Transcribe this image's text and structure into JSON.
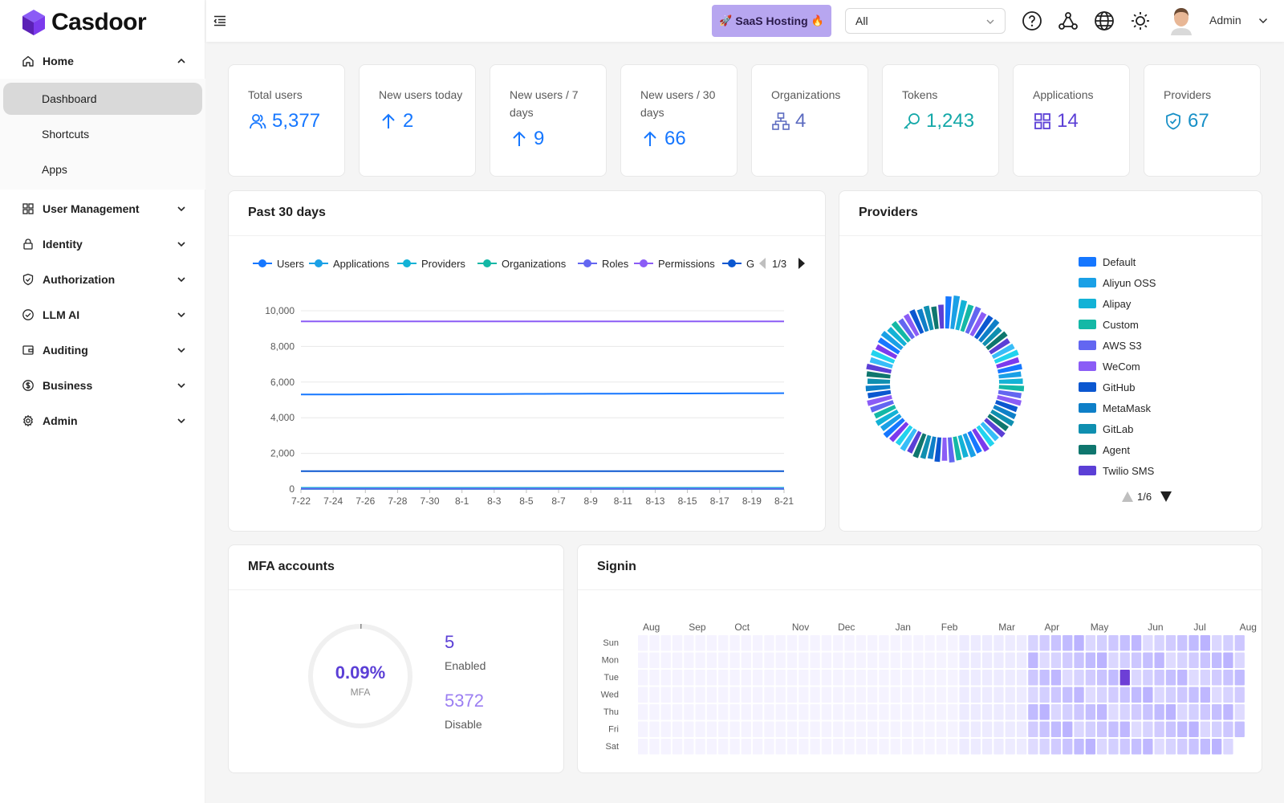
{
  "brand": {
    "name": "Casdoor"
  },
  "sidebar": {
    "items": [
      {
        "label": "Home",
        "icon": "home-icon",
        "expanded": true
      },
      {
        "label": "User Management",
        "icon": "apps-icon"
      },
      {
        "label": "Identity",
        "icon": "lock-icon"
      },
      {
        "label": "Authorization",
        "icon": "shield-icon"
      },
      {
        "label": "LLM AI",
        "icon": "check-circle-icon"
      },
      {
        "label": "Auditing",
        "icon": "wallet-icon"
      },
      {
        "label": "Business",
        "icon": "dollar-icon"
      },
      {
        "label": "Admin",
        "icon": "gear-icon"
      }
    ],
    "home_children": [
      {
        "label": "Dashboard",
        "active": true
      },
      {
        "label": "Shortcuts"
      },
      {
        "label": "Apps"
      }
    ]
  },
  "header": {
    "saas_button": "SaaS Hosting",
    "org_select": {
      "value": "All"
    },
    "user_name": "Admin",
    "icons": [
      "help-icon",
      "webhook-icon",
      "globe-icon",
      "sun-icon"
    ]
  },
  "stats": [
    {
      "title": "Total users",
      "value": "5,377",
      "icon": "users-icon",
      "color": "#1677ff"
    },
    {
      "title": "New users today",
      "value": "2",
      "icon": "arrow-up-icon",
      "color": "#1677ff"
    },
    {
      "title": "New users / 7 days",
      "value": "9",
      "icon": "arrow-up-icon",
      "color": "#1677ff"
    },
    {
      "title": "New users / 30 days",
      "value": "66",
      "icon": "arrow-up-icon",
      "color": "#1677ff"
    },
    {
      "title": "Organizations",
      "value": "4",
      "icon": "cluster-icon",
      "color": "#5c6bc0"
    },
    {
      "title": "Tokens",
      "value": "1,243",
      "icon": "key-icon",
      "color": "#13a8a8"
    },
    {
      "title": "Applications",
      "value": "14",
      "icon": "appstore-icon",
      "color": "#5b3fd6"
    },
    {
      "title": "Providers",
      "value": "67",
      "icon": "safety-icon",
      "color": "#1890c7"
    }
  ],
  "past30": {
    "title": "Past 30 days",
    "legend": [
      "Users",
      "Applications",
      "Providers",
      "Organizations",
      "Roles",
      "Permissions",
      "G"
    ],
    "legend_page": "1/3"
  },
  "providers_panel": {
    "title": "Providers",
    "legend": [
      "Default",
      "Aliyun OSS",
      "Alipay",
      "Custom",
      "AWS S3",
      "WeCom",
      "GitHub",
      "MetaMask",
      "GitLab",
      "Agent",
      "Twilio SMS"
    ],
    "legend_colors": [
      "#1677ff",
      "#1aa0e6",
      "#13b2d6",
      "#14b8a6",
      "#6366f1",
      "#8b5cf6",
      "#0b57d0",
      "#0e7fc8",
      "#0f8fb0",
      "#0f766e",
      "#5b3fd6"
    ],
    "legend_page": "1/6"
  },
  "mfa": {
    "title": "MFA accounts",
    "percent": "0.09%",
    "percent_label": "MFA",
    "enabled_count": "5",
    "enabled_label": "Enabled",
    "disabled_count": "5372",
    "disabled_label": "Disable"
  },
  "signin": {
    "title": "Signin",
    "months": [
      "Aug",
      "Sep",
      "Oct",
      "Nov",
      "Dec",
      "Jan",
      "Feb",
      "Mar",
      "Apr",
      "May",
      "Jun",
      "Jul",
      "Aug"
    ],
    "days": [
      "Sun",
      "Mon",
      "Tue",
      "Wed",
      "Thu",
      "Fri",
      "Sat"
    ]
  },
  "chart_data": [
    {
      "type": "line",
      "title": "Past 30 days",
      "x": [
        "7-22",
        "7-23",
        "7-24",
        "7-25",
        "7-26",
        "7-27",
        "7-28",
        "7-29",
        "7-30",
        "7-31",
        "8-1",
        "8-2",
        "8-3",
        "8-4",
        "8-5",
        "8-6",
        "8-7",
        "8-8",
        "8-9",
        "8-10",
        "8-11",
        "8-12",
        "8-13",
        "8-14",
        "8-15",
        "8-16",
        "8-17",
        "8-18",
        "8-19",
        "8-20",
        "8-21"
      ],
      "ylim": [
        0,
        10000
      ],
      "yticks": [
        0,
        2000,
        4000,
        6000,
        8000,
        10000
      ],
      "ytick_labels": [
        "0",
        "2,000",
        "4,000",
        "6,000",
        "8,000",
        "10,000"
      ],
      "xtick_labels": [
        "7-22",
        "7-24",
        "7-26",
        "7-28",
        "7-30",
        "8-1",
        "8-3",
        "8-5",
        "8-7",
        "8-9",
        "8-11",
        "8-13",
        "8-15",
        "8-17",
        "8-19",
        "8-21"
      ],
      "grid": true,
      "legend_position": "top",
      "series": [
        {
          "name": "Users",
          "color": "#1677ff",
          "start": 5300,
          "end": 5377
        },
        {
          "name": "Applications",
          "color": "#1aa0e6",
          "start": 14,
          "end": 14
        },
        {
          "name": "Providers",
          "color": "#13b2d6",
          "start": 67,
          "end": 67
        },
        {
          "name": "Organizations",
          "color": "#14b8a6",
          "start": 4,
          "end": 4
        },
        {
          "name": "Roles",
          "color": "#6366f1",
          "start": 20,
          "end": 20
        },
        {
          "name": "Permissions",
          "color": "#8b5cf6",
          "start": 9400,
          "end": 9400
        },
        {
          "name": "G",
          "color": "#0b57d0",
          "start": 1000,
          "end": 1000
        }
      ]
    },
    {
      "type": "pie",
      "title": "Providers",
      "slice_count": 67,
      "palette": [
        "#1677ff",
        "#1aa0e6",
        "#13b2d6",
        "#14b8a6",
        "#6366f1",
        "#8b5cf6",
        "#0b57d0",
        "#0e7fc8",
        "#0f8fb0",
        "#0f766e",
        "#5b3fd6",
        "#38bdf8",
        "#22d3ee",
        "#7c3aed"
      ],
      "legend_position": "right"
    },
    {
      "type": "pie",
      "title": "MFA accounts",
      "values": [
        5,
        5372
      ],
      "labels": [
        "Enabled",
        "Disable"
      ]
    },
    {
      "type": "heatmap",
      "title": "Signin",
      "highlight": {
        "week": 42,
        "day": 2,
        "level": 1.0
      }
    }
  ]
}
